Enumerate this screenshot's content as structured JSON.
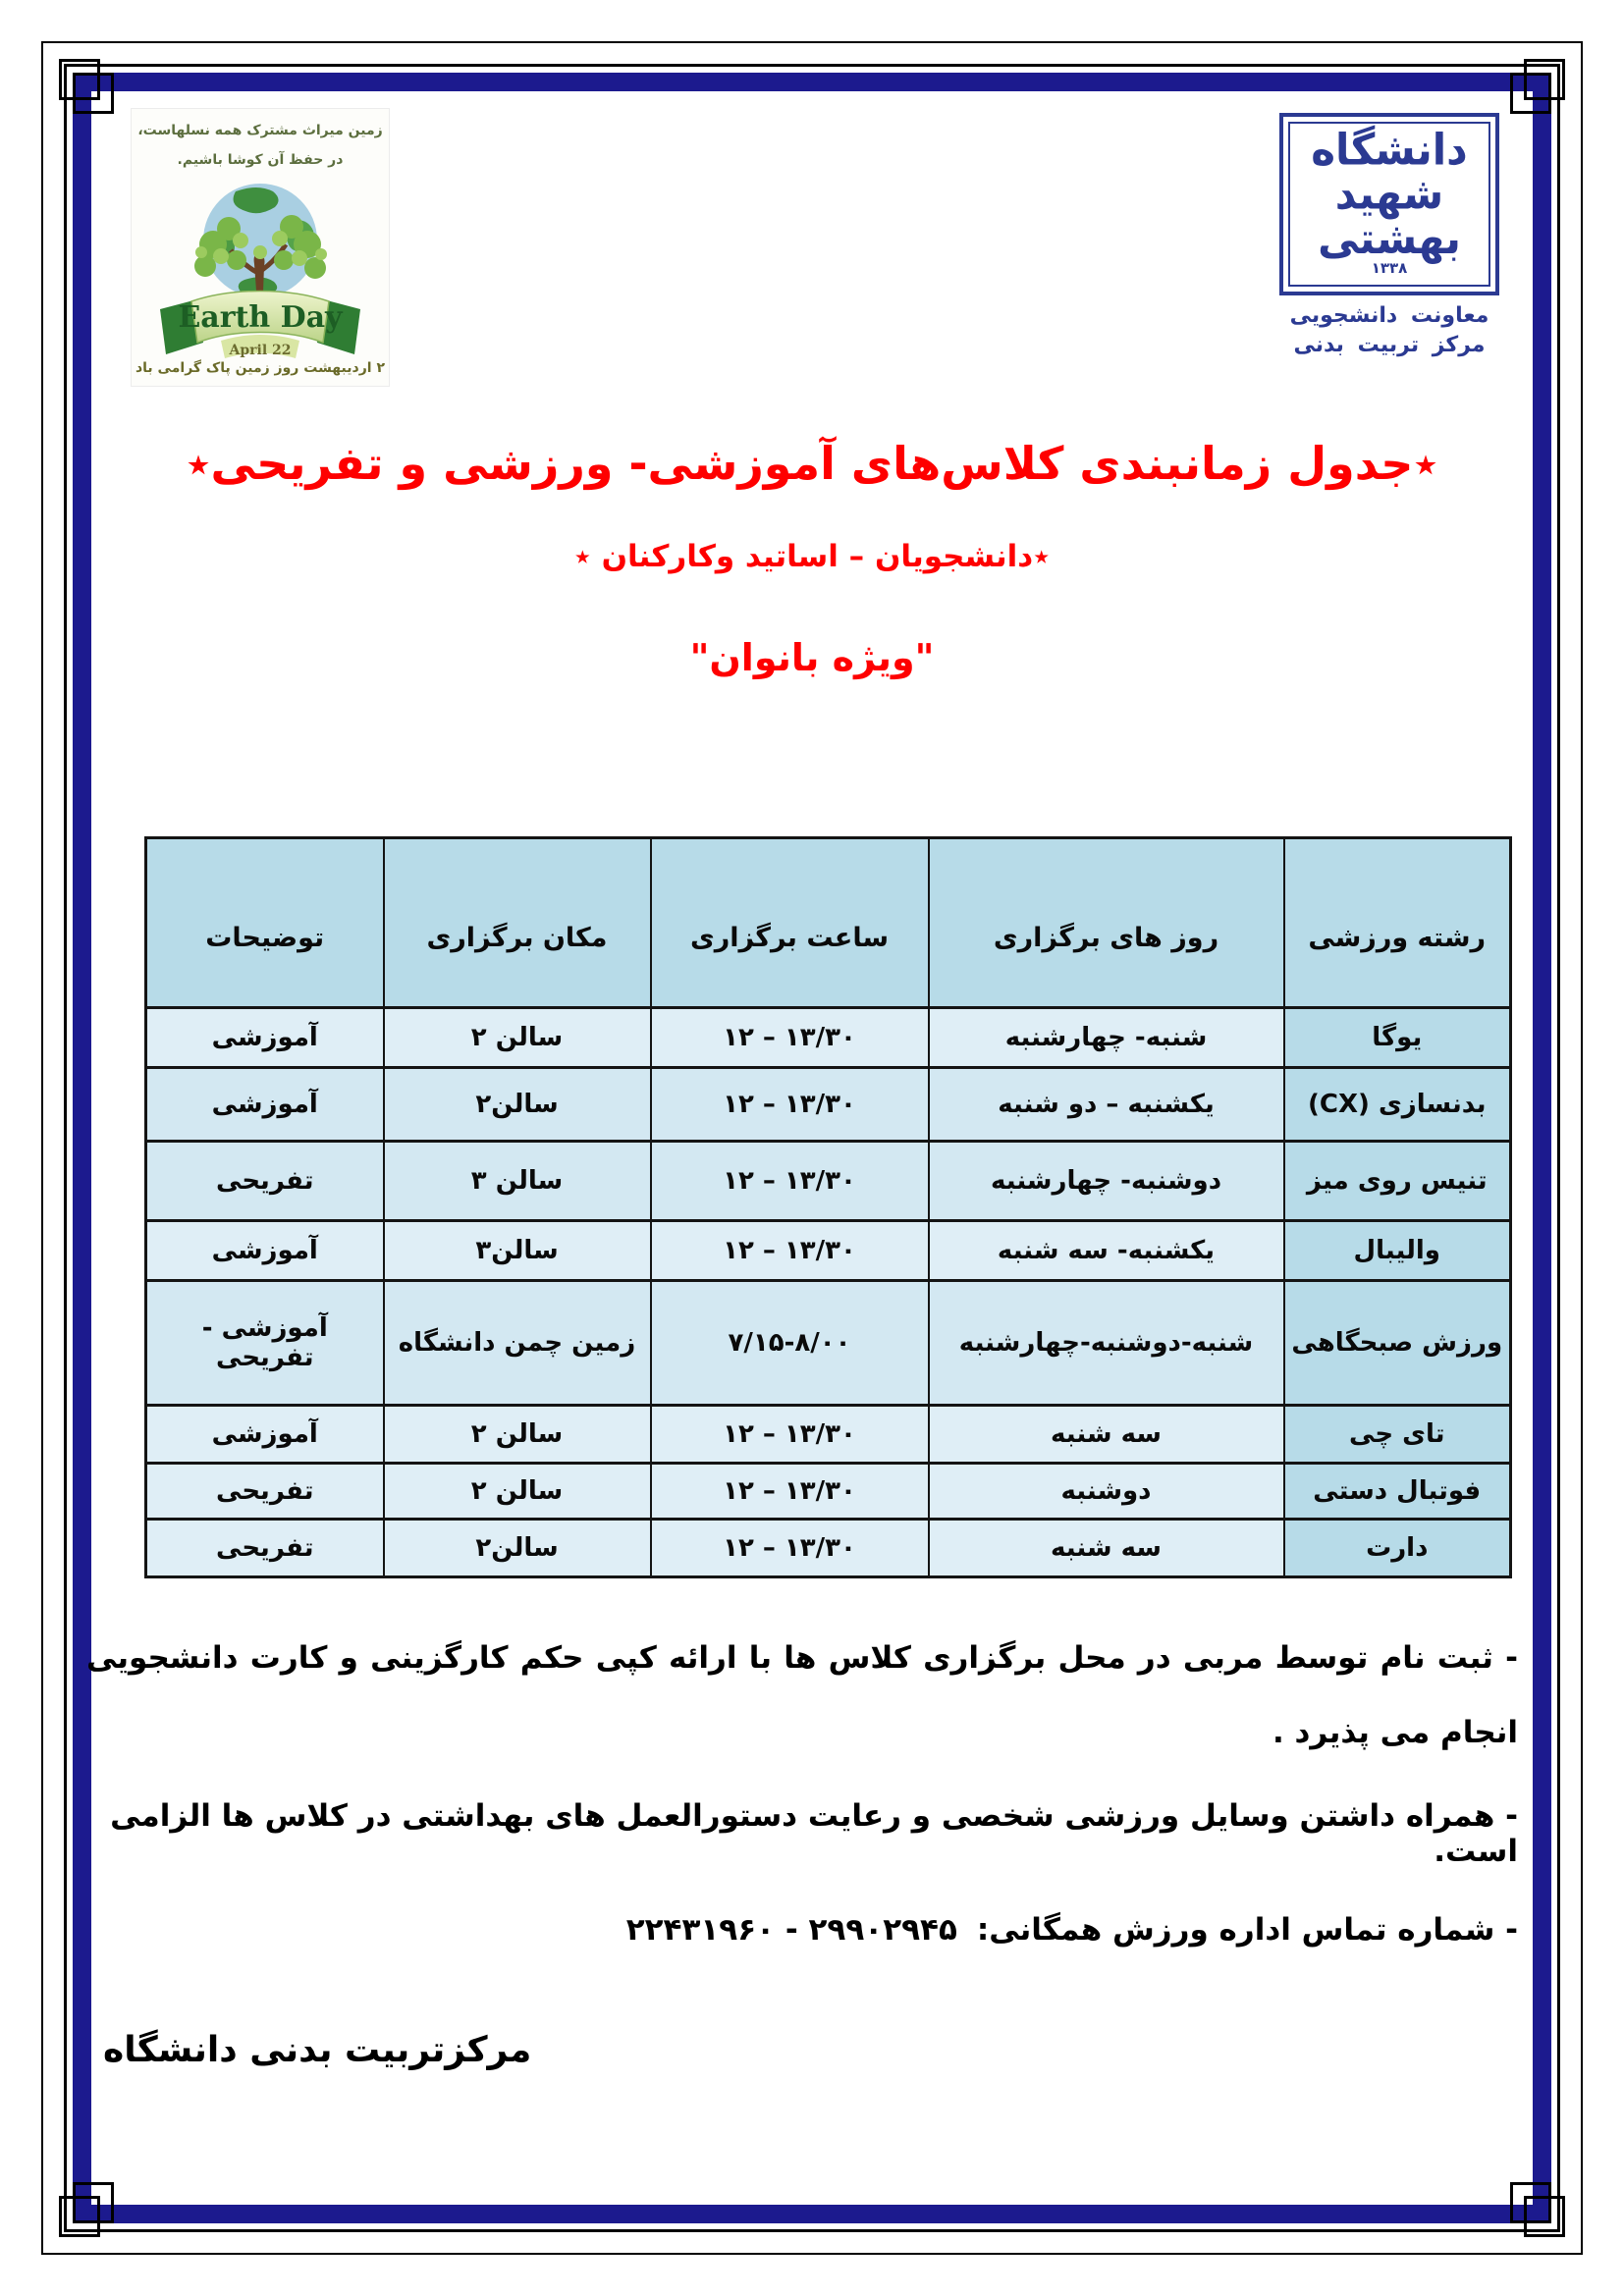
{
  "earth_logo": {
    "line1": "زمین میراث مشترک همه نسلهاست،",
    "line2": "در حفظ آن کوشا باشیم.",
    "banner_title": "Earth Day",
    "banner_date": "April 22",
    "caption": "۲ اردیبهشت   روز زمین پاک گرامی باد"
  },
  "university_logo": {
    "name": "دانشگاه شهید بهشتی",
    "year": "۱۳۳۸",
    "sub1": "معاونت دانشجویی",
    "sub2": "مرکز تربیت بدنی",
    "navy": "#2b3a92"
  },
  "titles": {
    "main": "٭جدول زمانبندی کلاس‌های آموزشی- ورزشی و تفریحی٭",
    "sub": "٭دانشجویان – اساتید وکارکنان ٭",
    "audience": "\"ویژه بانوان\""
  },
  "table": {
    "headers": [
      "رشته ورزشی",
      "روز های برگزاری",
      "ساعت برگزاری",
      "مکان برگزاری",
      "توضیحات"
    ],
    "rows": [
      {
        "sport": "یوگا",
        "days": "شنبه- چهارشنبه",
        "time": "۱۲ – ۱۳/۳۰",
        "place": "سالن ۲",
        "note": "آموزشی"
      },
      {
        "sport": "بدنسازی (CX)",
        "days": "یکشنبه – دو شنبه",
        "time": "۱۲ – ۱۳/۳۰",
        "place": "سالن۲",
        "note": "آموزشی"
      },
      {
        "sport": "تنیس روی میز",
        "days": "دوشنبه- چهارشنبه",
        "time": "۱۲ – ۱۳/۳۰",
        "place": "سالن ۳",
        "note": "تفریحی"
      },
      {
        "sport": "والیبال",
        "days": "یکشنبه- سه شنبه",
        "time": "۱۲ – ۱۳/۳۰",
        "place": "سالن۳",
        "note": "آموزشی"
      },
      {
        "sport": "ورزش صبحگاهی",
        "days": "شنبه-دوشنبه-چهارشنبه",
        "time": "۷/۱۵-۸/۰۰",
        "place": "زمین چمن دانشگاه",
        "note": "آموزشی - تفریحی"
      },
      {
        "sport": "تای چی",
        "days": "سه شنبه",
        "time": "۱۲ – ۱۳/۳۰",
        "place": "سالن ۲",
        "note": "آموزشی"
      },
      {
        "sport": "فوتبال دستی",
        "days": "دوشنبه",
        "time": "۱۲ – ۱۳/۳۰",
        "place": "سالن ۲",
        "note": "تفریحی"
      },
      {
        "sport": "دارت",
        "days": "سه شنبه",
        "time": "۱۲ – ۱۳/۳۰",
        "place": "سالن۲",
        "note": "تفریحی"
      }
    ]
  },
  "notes": {
    "n1": "- ثبت نام توسط مربی در محل برگزاری کلاس ها با ارائه کپی حکم کارگزینی و کارت دانشجویی انجام می پذیرد .",
    "n2": "- همراه داشتن وسایل ورزشی شخصی و رعایت دستورالعمل های بهداشتی در کلاس ها الزامی است.",
    "n3_label": "- شماره تماس اداره ورزش همگانی:",
    "n3_phones": "۲۲۴۳۱۹۶۰ - ۲۹۹۰۲۹۴۵"
  },
  "footer": "مرکزتربیت بدنی دانشگاه",
  "colors": {
    "frame_navy": "#1c1a8e",
    "title_red": "#fe0000",
    "table_header_bg": "#b7dbe8",
    "table_cell_bg": "#dfeef6"
  }
}
